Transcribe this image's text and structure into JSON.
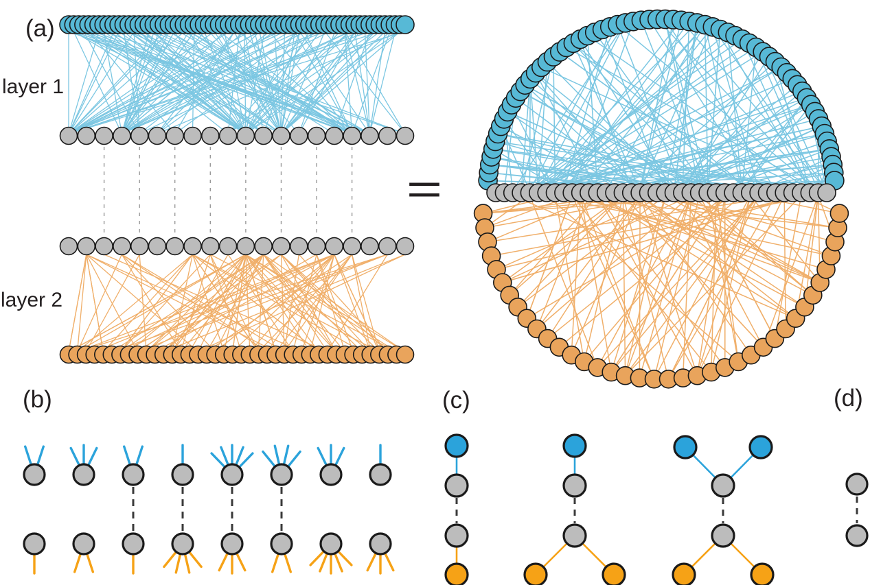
{
  "panels": {
    "a": {
      "label": "(a)",
      "layer1_label": "layer 1",
      "layer2_label": "layer 2",
      "equals": "=",
      "bipartite_view": {
        "layer1_top_nodes": 68,
        "layer1_bottom_nodes": 20,
        "layer2_top_nodes": 20,
        "layer2_bottom_nodes": 40,
        "layer1_edge_count": 158,
        "layer2_edge_count": 112,
        "interlayer_links": 8
      },
      "merged_view": {
        "blue_arc_nodes": 66,
        "gray_row_nodes": 40,
        "orange_arc_nodes": 38,
        "blue_edge_count": 152,
        "orange_edge_count": 106
      }
    },
    "b": {
      "label": "(b)",
      "columns": [
        {
          "blue_stubs": 2,
          "orange_stubs": 1,
          "interlayer": false
        },
        {
          "blue_stubs": 3,
          "orange_stubs": 2,
          "interlayer": false
        },
        {
          "blue_stubs": 2,
          "orange_stubs": 1,
          "interlayer": true
        },
        {
          "blue_stubs": 1,
          "orange_stubs": 4,
          "interlayer": true
        },
        {
          "blue_stubs": 5,
          "orange_stubs": 3,
          "interlayer": true
        },
        {
          "blue_stubs": 4,
          "orange_stubs": 2,
          "interlayer": true
        },
        {
          "blue_stubs": 3,
          "orange_stubs": 5,
          "interlayer": false
        },
        {
          "blue_stubs": 1,
          "orange_stubs": 3,
          "interlayer": false
        }
      ]
    },
    "c": {
      "label": "(c)",
      "motifs": [
        {
          "blue_nodes": 1,
          "gray_nodes": 2,
          "orange_nodes": 1
        },
        {
          "blue_nodes": 1,
          "gray_nodes": 2,
          "orange_nodes": 2
        },
        {
          "blue_nodes": 2,
          "gray_nodes": 2,
          "orange_nodes": 2
        }
      ]
    },
    "d": {
      "label": "(d)",
      "gray_nodes": 2,
      "interlayer": true
    }
  },
  "colors": {
    "blue_light": "#7CC7E2",
    "blue_node": "#57B9D6",
    "blue_strong": "#2BA3DB",
    "orange_light": "#F0AF6A",
    "orange_node": "#E9A45C",
    "orange_strong": "#F6A216",
    "gray_node": "#BCBCBC",
    "node_stroke": "#1A1A1A",
    "dash_gray": "#999999",
    "dash_dark": "#3A3A3A",
    "text": "#231F20"
  }
}
